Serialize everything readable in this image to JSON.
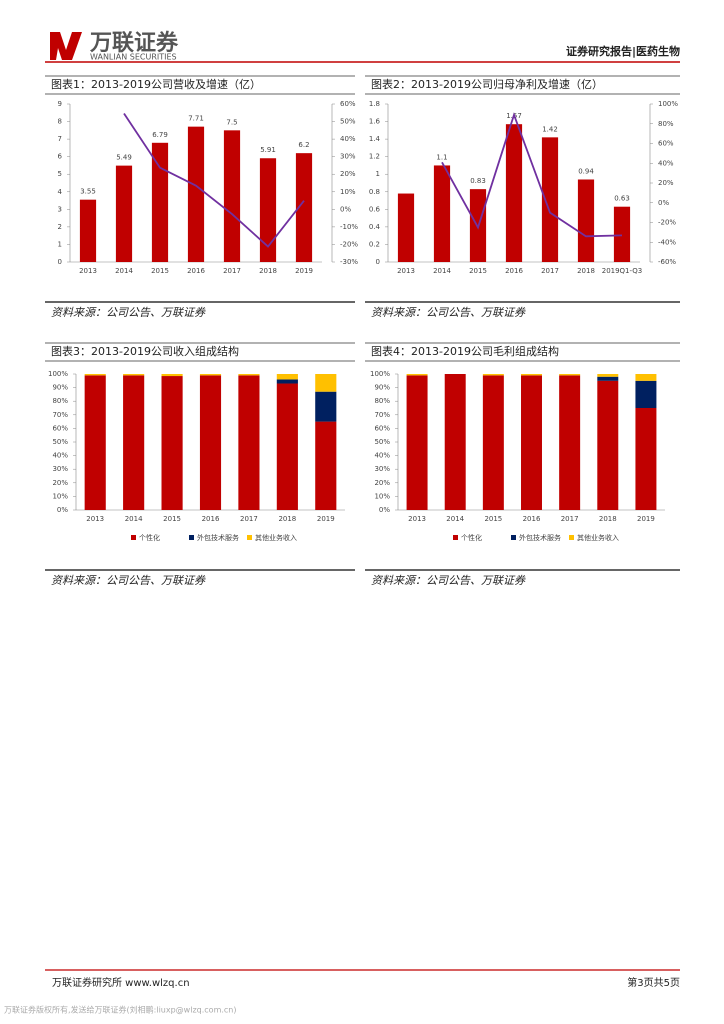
{
  "header": {
    "logo": "万联证券",
    "logo_en": "WANLIAN SECURITIES",
    "section": "证券研究报告|医药生物"
  },
  "chart_data": [
    {
      "type": "bar_line",
      "title": "图表1：2013-2019公司营收及增速（亿）",
      "source": "资料来源：公司公告、万联证券",
      "categories": [
        "2013",
        "2014",
        "2015",
        "2016",
        "2017",
        "2018",
        "2019"
      ],
      "series": [
        {
          "type": "bar",
          "color": "#c00000",
          "values": [
            3.55,
            5.49,
            6.79,
            7.71,
            7.5,
            5.91,
            6.2
          ]
        },
        {
          "type": "line",
          "axis": "y2",
          "color": "#7030a0",
          "values": [
            null,
            54.6,
            23.7,
            13.5,
            -2.7,
            -21.2,
            4.9
          ]
        }
      ],
      "ylim": [
        0,
        9
      ],
      "yticks": [
        0,
        1,
        2,
        3,
        4,
        5,
        6,
        7,
        8,
        9
      ],
      "y2lim": [
        -30,
        60
      ],
      "y2ticks": [
        {
          "value": -30,
          "label": "-30%"
        },
        {
          "value": -20,
          "label": "-20%"
        },
        {
          "value": -10,
          "label": "-10%"
        },
        {
          "value": 0,
          "label": "0%"
        },
        {
          "value": 10,
          "label": "10%"
        },
        {
          "value": 20,
          "label": "20%"
        },
        {
          "value": 30,
          "label": "30%"
        },
        {
          "value": 40,
          "label": "40%"
        },
        {
          "value": 50,
          "label": "50%"
        },
        {
          "value": 60,
          "label": "60%"
        }
      ]
    },
    {
      "type": "bar_line",
      "title": "图表2：2013-2019公司归母净利及增速（亿）",
      "source": "资料来源：公司公告、万联证券",
      "categories": [
        "2013",
        "2014",
        "2015",
        "2016",
        "2017",
        "2018",
        "2019Q1-Q3"
      ],
      "series": [
        {
          "type": "bar",
          "color": "#c00000",
          "values": [
            0.78,
            1.1,
            0.83,
            1.57,
            1.42,
            0.94,
            0.63
          ],
          "value_labels": [
            null,
            "1.1",
            "0.83",
            "1.57",
            "1.42",
            "0.94",
            "0.63"
          ]
        },
        {
          "type": "line",
          "axis": "y2",
          "color": "#7030a0",
          "values": [
            null,
            41,
            -25,
            89,
            -10,
            -34,
            -33
          ]
        }
      ],
      "ylim": [
        0,
        1.8
      ],
      "yticks": [
        0,
        0.2,
        0.4,
        0.6,
        0.8,
        1,
        1.2,
        1.4,
        1.6,
        1.8
      ],
      "y2lim": [
        -60,
        100
      ],
      "y2ticks": [
        {
          "value": -60,
          "label": "-60%"
        },
        {
          "value": -40,
          "label": "-40%"
        },
        {
          "value": -20,
          "label": "-20%"
        },
        {
          "value": 0,
          "label": "0%"
        },
        {
          "value": 20,
          "label": "20%"
        },
        {
          "value": 40,
          "label": "40%"
        },
        {
          "value": 60,
          "label": "60%"
        },
        {
          "value": 80,
          "label": "80%"
        },
        {
          "value": 100,
          "label": "100%"
        }
      ]
    },
    {
      "type": "stacked_bar",
      "title": "图表3：2013-2019公司收入组成结构",
      "source": "资料来源：公司公告、万联证券",
      "categories": [
        "2013",
        "2014",
        "2015",
        "2016",
        "2017",
        "2018",
        "2019"
      ],
      "series": [
        {
          "name": "个性化",
          "color": "#c00000",
          "values": [
            99,
            99,
            98.5,
            99,
            99,
            93,
            65
          ]
        },
        {
          "name": "外包技术服务",
          "color": "#002060",
          "values": [
            0,
            0,
            0,
            0,
            0,
            3,
            22
          ]
        },
        {
          "name": "其他业务收入",
          "color": "#ffc000",
          "values": [
            1,
            1,
            1.5,
            1,
            1,
            4,
            13
          ]
        }
      ],
      "ylim": [
        0,
        100
      ],
      "yticks": [
        {
          "value": 0,
          "label": "0%"
        },
        {
          "value": 10,
          "label": "10%"
        },
        {
          "value": 20,
          "label": "20%"
        },
        {
          "value": 30,
          "label": "30%"
        },
        {
          "value": 40,
          "label": "40%"
        },
        {
          "value": 50,
          "label": "50%"
        },
        {
          "value": 60,
          "label": "60%"
        },
        {
          "value": 70,
          "label": "70%"
        },
        {
          "value": 80,
          "label": "80%"
        },
        {
          "value": 90,
          "label": "90%"
        },
        {
          "value": 100,
          "label": "100%"
        }
      ]
    },
    {
      "type": "stacked_bar",
      "title": "图表4：2013-2019公司毛利组成结构",
      "source": "资料来源：公司公告、万联证券",
      "categories": [
        "2013",
        "2014",
        "2015",
        "2016",
        "2017",
        "2018",
        "2019"
      ],
      "series": [
        {
          "name": "个性化",
          "color": "#c00000",
          "values": [
            99,
            100,
            99,
            99,
            99,
            95,
            75
          ]
        },
        {
          "name": "外包技术服务",
          "color": "#002060",
          "values": [
            0,
            0,
            0,
            0,
            0,
            3,
            20
          ]
        },
        {
          "name": "其他业务收入",
          "color": "#ffc000",
          "values": [
            1,
            0,
            1,
            1,
            1,
            2,
            5
          ]
        }
      ],
      "ylim": [
        0,
        100
      ],
      "yticks": [
        {
          "value": 0,
          "label": "0%"
        },
        {
          "value": 10,
          "label": "10%"
        },
        {
          "value": 20,
          "label": "20%"
        },
        {
          "value": 30,
          "label": "30%"
        },
        {
          "value": 40,
          "label": "40%"
        },
        {
          "value": 50,
          "label": "50%"
        },
        {
          "value": 60,
          "label": "60%"
        },
        {
          "value": 70,
          "label": "70%"
        },
        {
          "value": 80,
          "label": "80%"
        },
        {
          "value": 90,
          "label": "90%"
        },
        {
          "value": 100,
          "label": "100%"
        }
      ]
    }
  ],
  "footer": {
    "left": "万联证券研究所 www.wlzq.cn",
    "right": "第3页共5页",
    "copyright": "万联证券版权所有,发送给万联证券(刘相鹏:liuxp@wlzq.com.cn)"
  }
}
